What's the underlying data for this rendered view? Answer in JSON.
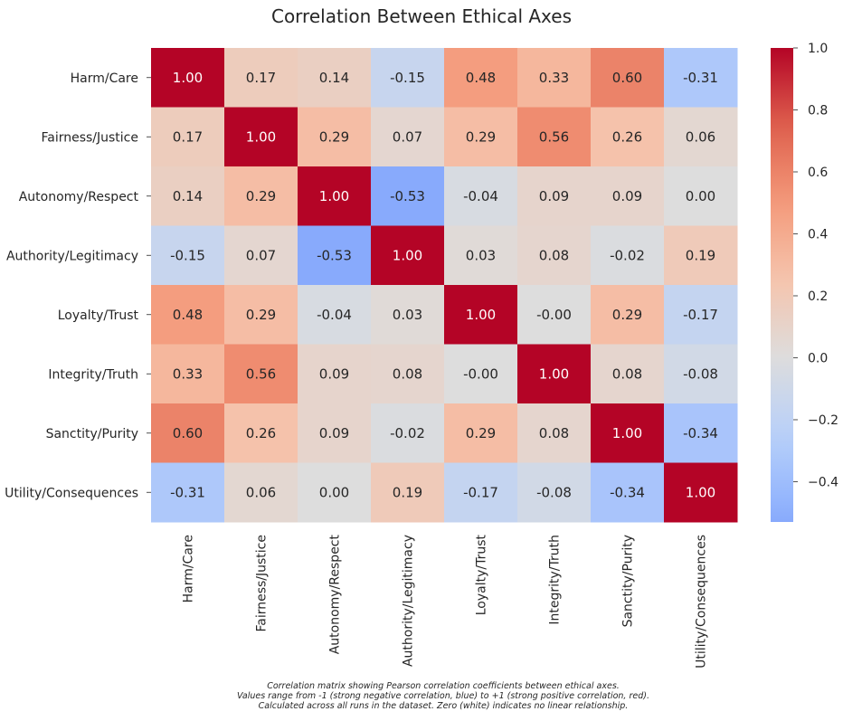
{
  "chart_data": {
    "type": "heatmap",
    "title": "Correlation Between Ethical Axes",
    "row_labels": [
      "Harm/Care",
      "Fairness/Justice",
      "Autonomy/Respect",
      "Authority/Legitimacy",
      "Loyalty/Trust",
      "Integrity/Truth",
      "Sanctity/Purity",
      "Utility/Consequences"
    ],
    "col_labels": [
      "Harm/Care",
      "Fairness/Justice",
      "Autonomy/Respect",
      "Authority/Legitimacy",
      "Loyalty/Trust",
      "Integrity/Truth",
      "Sanctity/Purity",
      "Utility/Consequences"
    ],
    "matrix": [
      [
        1.0,
        0.17,
        0.14,
        -0.15,
        0.48,
        0.33,
        0.6,
        -0.31
      ],
      [
        0.17,
        1.0,
        0.29,
        0.07,
        0.29,
        0.56,
        0.26,
        0.06
      ],
      [
        0.14,
        0.29,
        1.0,
        -0.53,
        -0.04,
        0.09,
        0.09,
        0.0
      ],
      [
        -0.15,
        0.07,
        -0.53,
        1.0,
        0.03,
        0.08,
        -0.02,
        0.19
      ],
      [
        0.48,
        0.29,
        -0.04,
        0.03,
        1.0,
        -0.0,
        0.29,
        -0.17
      ],
      [
        0.33,
        0.56,
        0.09,
        0.08,
        -0.0,
        1.0,
        0.08,
        -0.08
      ],
      [
        0.6,
        0.26,
        0.09,
        -0.02,
        0.29,
        0.08,
        1.0,
        -0.34
      ],
      [
        -0.31,
        0.06,
        0.0,
        0.19,
        -0.17,
        -0.08,
        -0.34,
        1.0
      ]
    ],
    "colormap": "coolwarm",
    "colorbar": {
      "min": -0.53,
      "max": 1.0,
      "ticks": [
        1.0,
        0.8,
        0.6,
        0.4,
        0.2,
        0.0,
        -0.2,
        -0.4
      ],
      "tick_labels": [
        "1.0",
        "0.8",
        "0.6",
        "0.4",
        "0.2",
        "0.0",
        "−0.2",
        "−0.4"
      ]
    },
    "caption": [
      "Correlation matrix showing Pearson correlation coefficients between ethical axes.",
      "Values range from -1 (strong negative correlation, blue) to +1 (strong positive correlation, red).",
      "Calculated across all runs in the dataset. Zero (white) indicates no linear relationship."
    ]
  }
}
